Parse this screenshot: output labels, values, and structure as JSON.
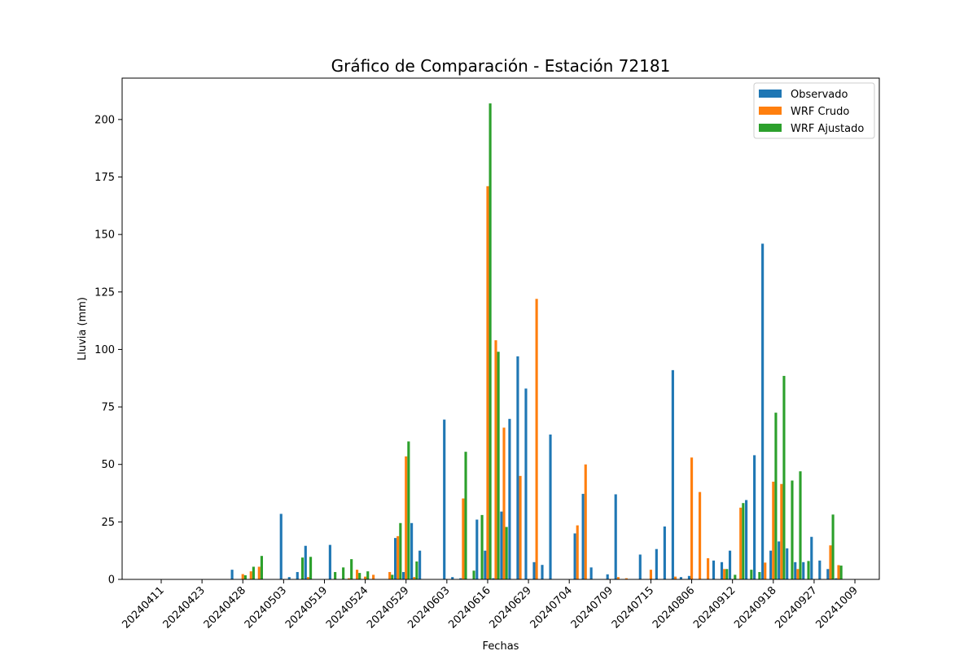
{
  "chart_data": {
    "type": "bar",
    "title": "Gráfico de Comparación - Estación 72181",
    "xlabel": "Fechas",
    "ylabel": "Lluvia (mm)",
    "ylim": [
      0,
      218
    ],
    "yticks": [
      0,
      25,
      50,
      75,
      100,
      125,
      150,
      175,
      200
    ],
    "xtick_labels": [
      "20240411",
      "20240423",
      "20240428",
      "20240503",
      "20240519",
      "20240524",
      "20240529",
      "20240603",
      "20240616",
      "20240629",
      "20240704",
      "20240709",
      "20240715",
      "20240806",
      "20240912",
      "20240918",
      "20240927",
      "20241009"
    ],
    "xtick_every": 5,
    "legend_position": "top-right",
    "series": [
      {
        "name": "Observado",
        "color": "#1f77b4",
        "values": [
          0,
          0,
          0,
          0,
          0,
          0,
          0,
          0,
          0,
          4.2,
          0,
          0,
          0,
          0,
          0,
          28.5,
          1,
          3.2,
          14.6,
          0,
          0,
          15,
          0,
          0,
          0,
          0,
          0,
          0,
          0,
          18,
          3.2,
          24.5,
          12.5,
          0,
          0,
          69.5,
          1,
          0.5,
          0,
          26,
          12.5,
          0.5,
          29.5,
          69.8,
          97,
          83,
          7.5,
          6.3,
          63,
          0,
          0,
          20,
          37.2,
          5.2,
          0,
          2.2,
          37,
          0,
          0,
          10.8,
          0,
          13.2,
          23,
          91,
          1,
          1.5,
          0,
          0,
          8.2,
          7.5,
          12.5,
          0,
          34.5,
          54,
          146,
          12.5,
          16.5,
          13.5,
          7.5,
          7.5,
          18.5,
          8.2,
          4.5,
          0.5
        ]
      },
      {
        "name": "WRF Crudo",
        "color": "#ff7f0e",
        "values": [
          0,
          0,
          0,
          0,
          0,
          0.1,
          0,
          0,
          0,
          0,
          2.3,
          3.5,
          5.5,
          0,
          0,
          0,
          0,
          0,
          1,
          0,
          0,
          0,
          0,
          0.5,
          4.2,
          1.2,
          2,
          0,
          3.2,
          18.8,
          53.5,
          1,
          0,
          0,
          0,
          0,
          0,
          35.2,
          0,
          0,
          171,
          104,
          66,
          0,
          45,
          0,
          122,
          0,
          0,
          0,
          0,
          23.5,
          50,
          0,
          0,
          0,
          1,
          0.5,
          0,
          0,
          4.2,
          0,
          0,
          1.2,
          0,
          53,
          38,
          9.2,
          0,
          4.5,
          0,
          31.2,
          0,
          0,
          7.3,
          42.5,
          41.5,
          0,
          4.5,
          0,
          0,
          0,
          14.8,
          6.2
        ]
      },
      {
        "name": "WRF Ajustado",
        "color": "#2ca02c",
        "values": [
          0,
          0,
          0,
          0,
          0,
          0,
          0,
          0,
          0,
          0,
          1.8,
          5.5,
          10.2,
          0,
          0,
          0,
          0,
          9.5,
          9.8,
          0,
          0,
          3.2,
          5.2,
          8.8,
          2.8,
          3.5,
          0,
          0,
          2,
          24.5,
          60,
          7.8,
          0,
          0,
          0,
          0,
          0,
          55.5,
          3.8,
          28,
          207,
          99,
          22.8,
          0,
          0,
          0,
          0,
          0,
          0,
          0,
          0,
          0,
          0,
          0,
          0,
          0,
          0,
          0,
          0,
          0,
          0,
          0,
          0,
          0,
          0,
          0,
          0,
          0,
          0,
          4.5,
          2,
          33.2,
          4.2,
          3.2,
          0,
          72.5,
          88.5,
          43,
          47,
          8,
          0,
          0,
          28.2,
          6
        ]
      }
    ]
  }
}
